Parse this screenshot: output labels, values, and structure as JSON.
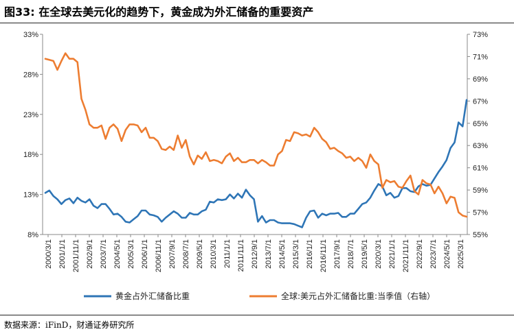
{
  "title": "图33: 在全球去美元化的趋势下，黄金成为外汇储备的重要资产",
  "source": "数据来源：iFinD，财通证券研究所",
  "chart_data": {
    "type": "line",
    "left_axis": {
      "min": 8,
      "max": 33,
      "ticks": [
        "8%",
        "13%",
        "18%",
        "23%",
        "28%",
        "33%"
      ],
      "values": [
        8,
        13,
        18,
        23,
        28,
        33
      ]
    },
    "right_axis": {
      "min": 55,
      "max": 73,
      "ticks": [
        "55%",
        "57%",
        "59%",
        "61%",
        "63%",
        "65%",
        "67%",
        "69%",
        "71%",
        "73%"
      ],
      "values": [
        55,
        57,
        59,
        61,
        63,
        65,
        67,
        69,
        71,
        73
      ]
    },
    "x_ticks": [
      "2000/3/1",
      "2001/1/1",
      "2001/11/1",
      "2002/9/1",
      "2003/7/1",
      "2004/5/1",
      "2005/3/1",
      "2006/1/1",
      "2006/11/1",
      "2007/9/1",
      "2008/7/1",
      "2009/5/1",
      "2010/3/1",
      "2011/1/1",
      "2011/11/1",
      "2012/9/1",
      "2013/7/1",
      "2014/5/1",
      "2015/3/1",
      "2016/1/1",
      "2016/11/1",
      "2017/9/1",
      "2018/7/1",
      "2019/5/1",
      "2020/3/1",
      "2021/1/1",
      "2021/11/1",
      "2022/9/1",
      "2023/7/1",
      "2024/5/1",
      "2025/3/1"
    ],
    "legend_position": "bottom",
    "series": [
      {
        "name": "黄金占外汇储备比重",
        "axis": "left",
        "color": "#2e75b6",
        "values": [
          13.2,
          13.5,
          12.8,
          12.4,
          11.8,
          12.3,
          12.5,
          11.9,
          12.6,
          12.2,
          12.0,
          12.4,
          11.6,
          11.3,
          11.8,
          11.8,
          11.2,
          10.5,
          10.6,
          10.2,
          9.6,
          9.5,
          9.9,
          10.3,
          11.0,
          11.0,
          10.5,
          10.4,
          10.2,
          9.6,
          10.1,
          10.5,
          10.9,
          10.6,
          10.1,
          10.1,
          10.7,
          10.5,
          10.5,
          10.9,
          11.1,
          12.1,
          12.0,
          12.4,
          12.3,
          12.4,
          13.0,
          12.5,
          13.1,
          12.6,
          13.6,
          12.9,
          12.4,
          9.6,
          10.3,
          9.5,
          9.8,
          9.8,
          9.5,
          9.4,
          9.4,
          9.4,
          9.3,
          9.1,
          8.9,
          10.1,
          10.9,
          11.0,
          10.1,
          10.6,
          10.4,
          10.6,
          10.6,
          10.7,
          10.2,
          10.2,
          10.6,
          10.6,
          11.2,
          11.8,
          12.0,
          12.6,
          13.5,
          14.3,
          14.0,
          12.9,
          13.2,
          12.6,
          12.8,
          13.8,
          13.8,
          13.4,
          13.3,
          14.0,
          14.3,
          14.1,
          14.2,
          15.0,
          15.8,
          16.5,
          17.3,
          18.8,
          19.5,
          22.0,
          21.5,
          24.8
        ]
      },
      {
        "name": "全球:美元占外汇储备比重:当季值（右轴）",
        "axis": "right",
        "color": "#ed7d31",
        "values": [
          70.8,
          70.7,
          70.6,
          69.8,
          70.6,
          71.3,
          70.8,
          70.8,
          70.5,
          67.2,
          66.2,
          64.9,
          64.6,
          64.6,
          64.8,
          63.6,
          64.6,
          64.9,
          64.5,
          63.4,
          64.4,
          64.9,
          64.9,
          64.8,
          64.2,
          64.6,
          63.7,
          63.7,
          63.4,
          62.7,
          62.6,
          62.9,
          62.6,
          63.9,
          62.8,
          63.5,
          62.0,
          61.3,
          62.1,
          61.8,
          62.4,
          61.6,
          61.7,
          61.6,
          61.4,
          62.0,
          62.3,
          61.6,
          61.9,
          61.5,
          61.5,
          61.7,
          61.7,
          61.4,
          61.7,
          61.5,
          61.2,
          61.2,
          62.2,
          62.5,
          63.5,
          63.4,
          64.2,
          64.1,
          63.9,
          64.0,
          63.8,
          64.6,
          64.2,
          63.6,
          63.3,
          62.7,
          62.8,
          62.5,
          62.3,
          61.9,
          62.0,
          61.6,
          61.9,
          61.6,
          61.0,
          62.2,
          61.6,
          61.3,
          59.2,
          59.9,
          59.7,
          59.8,
          59.3,
          59.2,
          59.8,
          60.3,
          58.9,
          58.6,
          59.9,
          59.6,
          59.5,
          58.7,
          59.3,
          58.7,
          57.8,
          58.4,
          58.3,
          57.0,
          56.7,
          56.6
        ]
      }
    ]
  }
}
